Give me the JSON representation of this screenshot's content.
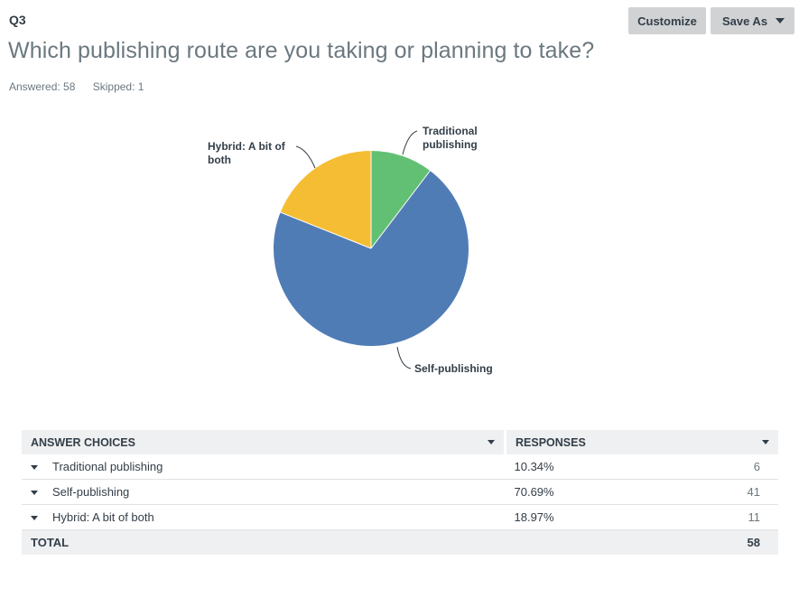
{
  "question": {
    "number": "Q3",
    "title": "Which publishing route are you taking or planning to take?",
    "answered": "Answered: 58",
    "skipped": "Skipped: 1"
  },
  "toolbar": {
    "customize_label": "Customize",
    "save_as_label": "Save As"
  },
  "chart_data": {
    "type": "pie",
    "categories": [
      "Traditional publishing",
      "Self-publishing",
      "Hybrid: A bit of both"
    ],
    "values": [
      10.34,
      70.69,
      18.97
    ],
    "labels": [
      [
        "Traditional",
        "publishing"
      ],
      [
        "Self-publishing"
      ],
      [
        "Hybrid: A bit of",
        "both"
      ]
    ],
    "colors": [
      "#62c074",
      "#507cb6",
      "#f5bd33"
    ]
  },
  "table": {
    "headers": [
      "ANSWER CHOICES",
      "RESPONSES"
    ],
    "rows": [
      {
        "choice": "Traditional publishing",
        "percent": "10.34%",
        "count": "6"
      },
      {
        "choice": "Self-publishing",
        "percent": "70.69%",
        "count": "41"
      },
      {
        "choice": "Hybrid: A bit of both",
        "percent": "18.97%",
        "count": "11"
      }
    ],
    "total_label": "TOTAL",
    "total_count": "58"
  }
}
